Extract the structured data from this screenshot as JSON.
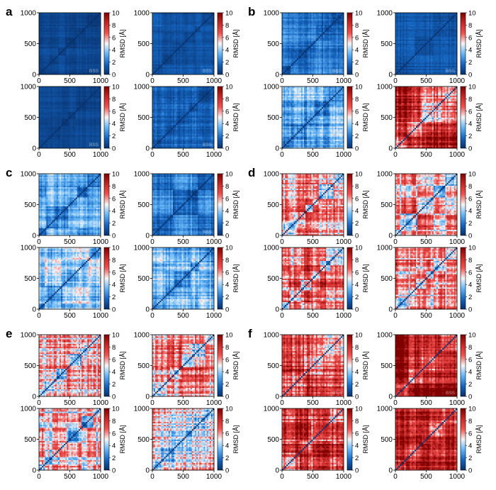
{
  "figure": {
    "panel_letters": [
      "a",
      "b",
      "c",
      "d",
      "e",
      "f"
    ],
    "axis_ticks": [
      "0",
      "500",
      "1000"
    ],
    "colorbar_ticks": [
      "0",
      "2",
      "4",
      "6",
      "8",
      "10"
    ],
    "colorbar_label": "RMSD [Å]",
    "bss_label": "BSS",
    "colormap": [
      "#08306b",
      "#1565c0",
      "#64b5f6",
      "#f5f5f5",
      "#ef5350",
      "#c62828",
      "#800000"
    ]
  },
  "chart_data": [
    {
      "panel": "a",
      "position": "top-left",
      "type": "heatmap",
      "xlim": [
        0,
        1000
      ],
      "ylim": [
        0,
        1000
      ],
      "clim": [
        0,
        10
      ],
      "colorbar_label": "RMSD [Å]",
      "mean_rmsd": 0.6,
      "variability": 0.4,
      "blocks": 6,
      "corner_label": "BSS"
    },
    {
      "panel": "a",
      "position": "top-right",
      "type": "heatmap",
      "xlim": [
        0,
        1000
      ],
      "ylim": [
        0,
        1000
      ],
      "clim": [
        0,
        10
      ],
      "colorbar_label": "RMSD [Å]",
      "mean_rmsd": 0.9,
      "variability": 0.5,
      "blocks": 6,
      "corner_label": "BSS"
    },
    {
      "panel": "a",
      "position": "bottom-left",
      "type": "heatmap",
      "xlim": [
        0,
        1000
      ],
      "ylim": [
        0,
        1000
      ],
      "clim": [
        0,
        10
      ],
      "colorbar_label": "RMSD [Å]",
      "mean_rmsd": 0.5,
      "variability": 0.3,
      "blocks": 6,
      "corner_label": "BSS"
    },
    {
      "panel": "a",
      "position": "bottom-right",
      "type": "heatmap",
      "xlim": [
        0,
        1000
      ],
      "ylim": [
        0,
        1000
      ],
      "clim": [
        0,
        10
      ],
      "colorbar_label": "RMSD [Å]",
      "mean_rmsd": 1.2,
      "variability": 0.8,
      "blocks": 5,
      "corner_label": "BSS"
    },
    {
      "panel": "b",
      "position": "top-left",
      "type": "heatmap",
      "xlim": [
        0,
        1000
      ],
      "ylim": [
        0,
        1000
      ],
      "clim": [
        0,
        10
      ],
      "colorbar_label": "RMSD [Å]",
      "mean_rmsd": 1.5,
      "variability": 1.0,
      "blocks": 5,
      "corner_label": "BSS"
    },
    {
      "panel": "b",
      "position": "top-right",
      "type": "heatmap",
      "xlim": [
        0,
        1000
      ],
      "ylim": [
        0,
        1000
      ],
      "clim": [
        0,
        10
      ],
      "colorbar_label": "RMSD [Å]",
      "mean_rmsd": 1.0,
      "variability": 0.6,
      "blocks": 3,
      "corner_label": "BSS"
    },
    {
      "panel": "b",
      "position": "bottom-left",
      "type": "heatmap",
      "xlim": [
        0,
        1000
      ],
      "ylim": [
        0,
        1000
      ],
      "clim": [
        0,
        10
      ],
      "colorbar_label": "RMSD [Å]",
      "mean_rmsd": 2.5,
      "variability": 1.6,
      "blocks": 5,
      "corner_label": ""
    },
    {
      "panel": "b",
      "position": "bottom-right",
      "type": "heatmap",
      "xlim": [
        0,
        1000
      ],
      "ylim": [
        0,
        1000
      ],
      "clim": [
        0,
        10
      ],
      "colorbar_label": "RMSD [Å]",
      "mean_rmsd": 6.0,
      "variability": 2.5,
      "blocks": 4,
      "corner_label": ""
    },
    {
      "panel": "c",
      "position": "top-left",
      "type": "heatmap",
      "xlim": [
        0,
        1000
      ],
      "ylim": [
        0,
        1000
      ],
      "clim": [
        0,
        10
      ],
      "colorbar_label": "RMSD [Å]",
      "mean_rmsd": 2.2,
      "variability": 1.4,
      "blocks": 6,
      "corner_label": ""
    },
    {
      "panel": "c",
      "position": "top-right",
      "type": "heatmap",
      "xlim": [
        0,
        1000
      ],
      "ylim": [
        0,
        1000
      ],
      "clim": [
        0,
        10
      ],
      "colorbar_label": "RMSD [Å]",
      "mean_rmsd": 1.5,
      "variability": 1.0,
      "blocks": 5,
      "corner_label": "BSS"
    },
    {
      "panel": "c",
      "position": "bottom-left",
      "type": "heatmap",
      "xlim": [
        0,
        1000
      ],
      "ylim": [
        0,
        1000
      ],
      "clim": [
        0,
        10
      ],
      "colorbar_label": "RMSD [Å]",
      "mean_rmsd": 3.0,
      "variability": 1.6,
      "blocks": 6,
      "corner_label": ""
    },
    {
      "panel": "c",
      "position": "bottom-right",
      "type": "heatmap",
      "xlim": [
        0,
        1000
      ],
      "ylim": [
        0,
        1000
      ],
      "clim": [
        0,
        10
      ],
      "colorbar_label": "RMSD [Å]",
      "mean_rmsd": 2.8,
      "variability": 1.5,
      "blocks": 6,
      "corner_label": ""
    },
    {
      "panel": "d",
      "position": "top-left",
      "type": "heatmap",
      "xlim": [
        0,
        1000
      ],
      "ylim": [
        0,
        1000
      ],
      "clim": [
        0,
        10
      ],
      "colorbar_label": "RMSD [Å]",
      "mean_rmsd": 5.5,
      "variability": 2.8,
      "blocks": 6,
      "corner_label": ""
    },
    {
      "panel": "d",
      "position": "top-right",
      "type": "heatmap",
      "xlim": [
        0,
        1000
      ],
      "ylim": [
        0,
        1000
      ],
      "clim": [
        0,
        10
      ],
      "colorbar_label": "RMSD [Å]",
      "mean_rmsd": 4.5,
      "variability": 2.2,
      "blocks": 6,
      "corner_label": ""
    },
    {
      "panel": "d",
      "position": "bottom-left",
      "type": "heatmap",
      "xlim": [
        0,
        1000
      ],
      "ylim": [
        0,
        1000
      ],
      "clim": [
        0,
        10
      ],
      "colorbar_label": "RMSD [Å]",
      "mean_rmsd": 5.0,
      "variability": 2.4,
      "blocks": 6,
      "corner_label": ""
    },
    {
      "panel": "d",
      "position": "bottom-right",
      "type": "heatmap",
      "xlim": [
        0,
        1000
      ],
      "ylim": [
        0,
        1000
      ],
      "clim": [
        0,
        10
      ],
      "colorbar_label": "RMSD [Å]",
      "mean_rmsd": 4.5,
      "variability": 2.4,
      "blocks": 6,
      "corner_label": ""
    },
    {
      "panel": "e",
      "position": "top-left",
      "type": "heatmap",
      "xlim": [
        0,
        1000
      ],
      "ylim": [
        0,
        1000
      ],
      "clim": [
        0,
        10
      ],
      "colorbar_label": "RMSD [Å]",
      "mean_rmsd": 4.8,
      "variability": 2.6,
      "blocks": 6,
      "corner_label": ""
    },
    {
      "panel": "e",
      "position": "top-right",
      "type": "heatmap",
      "xlim": [
        0,
        1000
      ],
      "ylim": [
        0,
        1000
      ],
      "clim": [
        0,
        10
      ],
      "colorbar_label": "RMSD [Å]",
      "mean_rmsd": 5.2,
      "variability": 2.6,
      "blocks": 6,
      "corner_label": ""
    },
    {
      "panel": "e",
      "position": "bottom-left",
      "type": "heatmap",
      "xlim": [
        0,
        1000
      ],
      "ylim": [
        0,
        1000
      ],
      "clim": [
        0,
        10
      ],
      "colorbar_label": "RMSD [Å]",
      "mean_rmsd": 4.2,
      "variability": 2.4,
      "blocks": 6,
      "corner_label": ""
    },
    {
      "panel": "e",
      "position": "bottom-right",
      "type": "heatmap",
      "xlim": [
        0,
        1000
      ],
      "ylim": [
        0,
        1000
      ],
      "clim": [
        0,
        10
      ],
      "colorbar_label": "RMSD [Å]",
      "mean_rmsd": 4.0,
      "variability": 2.2,
      "blocks": 6,
      "corner_label": ""
    },
    {
      "panel": "f",
      "position": "top-left",
      "type": "heatmap",
      "xlim": [
        0,
        1000
      ],
      "ylim": [
        0,
        1000
      ],
      "clim": [
        0,
        10
      ],
      "colorbar_label": "RMSD [Å]",
      "mean_rmsd": 7.0,
      "variability": 2.5,
      "blocks": 3,
      "corner_label": "BSS"
    },
    {
      "panel": "f",
      "position": "top-right",
      "type": "heatmap",
      "xlim": [
        0,
        1000
      ],
      "ylim": [
        0,
        1000
      ],
      "clim": [
        0,
        10
      ],
      "colorbar_label": "RMSD [Å]",
      "mean_rmsd": 7.5,
      "variability": 2.2,
      "blocks": 4,
      "corner_label": "BSS"
    },
    {
      "panel": "f",
      "position": "bottom-left",
      "type": "heatmap",
      "xlim": [
        0,
        1000
      ],
      "ylim": [
        0,
        1000
      ],
      "clim": [
        0,
        10
      ],
      "colorbar_label": "RMSD [Å]",
      "mean_rmsd": 7.0,
      "variability": 2.8,
      "blocks": 4,
      "corner_label": ""
    },
    {
      "panel": "f",
      "position": "bottom-right",
      "type": "heatmap",
      "xlim": [
        0,
        1000
      ],
      "ylim": [
        0,
        1000
      ],
      "clim": [
        0,
        10
      ],
      "colorbar_label": "RMSD [Å]",
      "mean_rmsd": 7.8,
      "variability": 2.4,
      "blocks": 5,
      "corner_label": ""
    }
  ]
}
